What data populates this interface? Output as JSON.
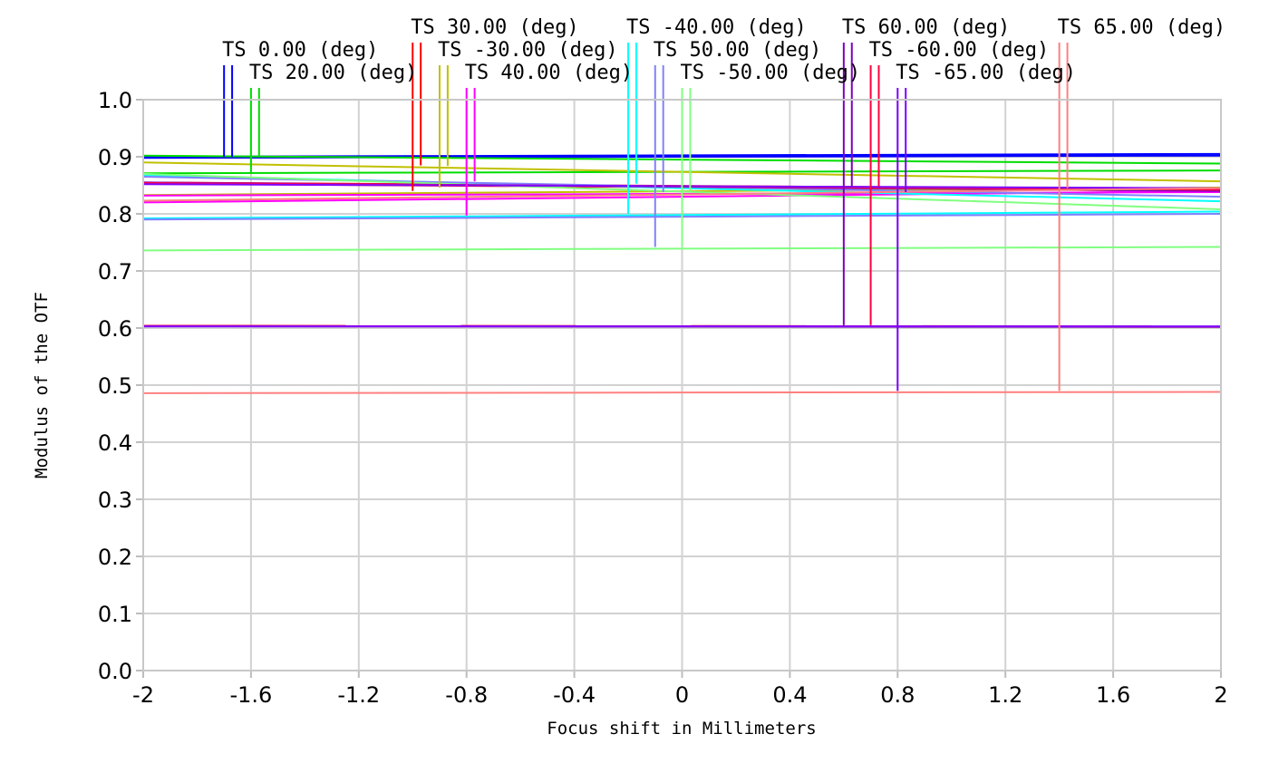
{
  "chart_data": {
    "type": "line",
    "title": "",
    "xlabel": "Focus shift in Millimeters",
    "ylabel": "Modulus of the OTF",
    "xlim": [
      -2,
      2
    ],
    "ylim": [
      0,
      1
    ],
    "x_ticks": [
      "-2",
      "-1.6",
      "-1.2",
      "-0.8",
      "-0.4",
      "0",
      "0.4",
      "0.8",
      "1.2",
      "1.6",
      "2"
    ],
    "y_ticks": [
      "0.0",
      "0.1",
      "0.2",
      "0.3",
      "0.4",
      "0.5",
      "0.6",
      "0.7",
      "0.8",
      "0.9",
      "1.0"
    ],
    "grid": true,
    "legend_placement": "top",
    "x": [
      -2,
      2
    ],
    "series": [
      {
        "name": "TS 0.00 (deg)",
        "color": "#0000ff",
        "values": [
          0.9,
          0.905
        ],
        "values2": [
          0.898,
          0.902
        ]
      },
      {
        "name": "TS 20.00 (deg)",
        "color": "#00dd00",
        "values": [
          0.902,
          0.888
        ],
        "values2": [
          0.871,
          0.876
        ]
      },
      {
        "name": "TS 30.00 (deg)",
        "color": "#ff0000",
        "values": [
          0.855,
          0.843
        ],
        "values2": [
          0.853,
          0.84
        ]
      },
      {
        "name": "TS -30.00 (deg)",
        "color": "#c0c000",
        "values": [
          0.89,
          0.857
        ],
        "values2": [
          0.833,
          0.846
        ]
      },
      {
        "name": "TS 40.00 (deg)",
        "color": "#ff00ff",
        "values": [
          0.832,
          0.838
        ],
        "values2": [
          0.82,
          0.84
        ]
      },
      {
        "name": "TS -40.00 (deg)",
        "color": "#00ffff",
        "values": [
          0.868,
          0.822
        ],
        "values2": [
          0.792,
          0.804
        ]
      },
      {
        "name": "TS 50.00 (deg)",
        "color": "#8080ff",
        "values": [
          0.865,
          0.83
        ],
        "values2": [
          0.79,
          0.8
        ]
      },
      {
        "name": "TS -50.00 (deg)",
        "color": "#80ff80",
        "values": [
          0.87,
          0.808
        ],
        "values2": [
          0.736,
          0.742
        ]
      },
      {
        "name": "TS 60.00 (deg)",
        "color": "#8000c0",
        "values": [
          0.855,
          0.84
        ],
        "values2": [
          0.603,
          0.602
        ]
      },
      {
        "name": "TS -60.00 (deg)",
        "color": "#ff0040",
        "values": [
          0.854,
          0.842
        ],
        "values2": [
          0.604,
          0.603
        ]
      },
      {
        "name": "TS -65.00 (deg)",
        "color": "#8000ff",
        "values": [
          0.852,
          0.845
        ],
        "values2": [
          0.603,
          0.603
        ]
      },
      {
        "name": "TS 65.00 (deg)",
        "color": "#ff8080",
        "values": [
          0.823,
          0.845
        ],
        "values2": [
          0.486,
          0.488
        ]
      }
    ],
    "legend_markers": [
      {
        "series": 0,
        "x1": -1.7,
        "x2": -1.67,
        "y_end1": 0.9,
        "y_end2": 0.9
      },
      {
        "series": 1,
        "x1": -1.6,
        "x2": -1.57,
        "y_end1": 0.871,
        "y_end2": 0.9
      },
      {
        "series": 2,
        "x1": -1.0,
        "x2": -0.97,
        "y_end1": 0.84,
        "y_end2": 0.885
      },
      {
        "series": 3,
        "x1": -0.9,
        "x2": -0.87,
        "y_end1": 0.846,
        "y_end2": 0.884
      },
      {
        "series": 4,
        "x1": -0.8,
        "x2": -0.77,
        "y_end1": 0.797,
        "y_end2": 0.857
      },
      {
        "series": 5,
        "x1": -0.2,
        "x2": -0.17,
        "y_end1": 0.8,
        "y_end2": 0.853
      },
      {
        "series": 6,
        "x1": -0.1,
        "x2": -0.07,
        "y_end1": 0.742,
        "y_end2": 0.838
      },
      {
        "series": 7,
        "x1": 0.0,
        "x2": 0.03,
        "y_end1": 0.742,
        "y_end2": 0.84
      },
      {
        "series": 8,
        "x1": 0.6,
        "x2": 0.63,
        "y_end1": 0.605,
        "y_end2": 0.848
      },
      {
        "series": 9,
        "x1": 0.7,
        "x2": 0.73,
        "y_end1": 0.605,
        "y_end2": 0.848
      },
      {
        "series": 10,
        "x1": 0.8,
        "x2": 0.83,
        "y_end1": 0.49,
        "y_end2": 0.838
      },
      {
        "series": 11,
        "x1": 1.4,
        "x2": 1.43,
        "y_end1": 0.49,
        "y_end2": 0.845
      }
    ]
  }
}
